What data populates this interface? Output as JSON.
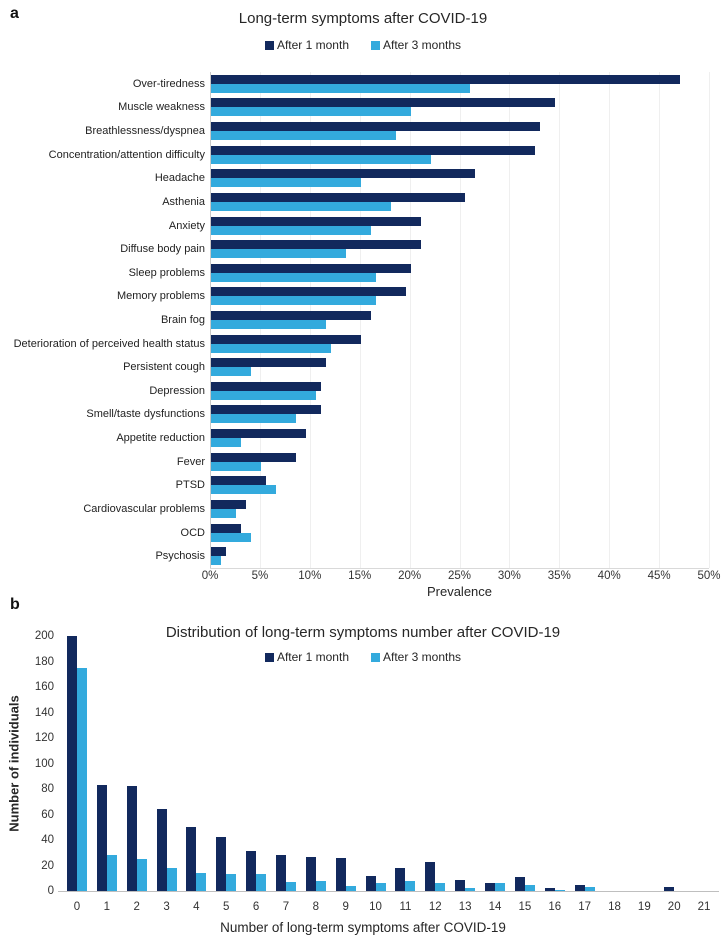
{
  "figure": {
    "panel_a_label": "a",
    "panel_b_label": "b"
  },
  "colors": {
    "after_1_month": "#12295d",
    "after_3_months": "#33aadd",
    "gridline": "#efefef",
    "axis": "#bfbfbf",
    "text": "#262626"
  },
  "chart_data": [
    {
      "panel": "a",
      "type": "bar",
      "orientation": "horizontal",
      "title": "Long-term symptoms after COVID-19",
      "legend_position": "top-center",
      "grid": "vertical gridlines every 5%",
      "xlabel": "Prevalence",
      "xlim": [
        0,
        50
      ],
      "x_tick_labels": [
        "0%",
        "5%",
        "10%",
        "15%",
        "20%",
        "25%",
        "30%",
        "35%",
        "40%",
        "45%",
        "50%"
      ],
      "categories": [
        "Over-tiredness",
        "Muscle weakness",
        "Breathlessness/dyspnea",
        "Concentration/attention difficulty",
        "Headache",
        "Asthenia",
        "Anxiety",
        "Diffuse body pain",
        "Sleep problems",
        "Memory problems",
        "Brain fog",
        "Deterioration of perceived health status",
        "Persistent cough",
        "Depression",
        "Smell/taste dysfunctions",
        "Appetite reduction",
        "Fever",
        "PTSD",
        "Cardiovascular problems",
        "OCD",
        "Psychosis"
      ],
      "series": [
        {
          "name": "After 1 month",
          "color": "#12295d",
          "values": [
            47,
            34.5,
            33,
            32.5,
            26.5,
            25.5,
            21,
            21,
            20,
            19.5,
            16,
            15,
            11.5,
            11,
            11,
            9.5,
            8.5,
            5.5,
            3.5,
            3,
            1.5
          ]
        },
        {
          "name": "After 3 months",
          "color": "#33aadd",
          "values": [
            26,
            20,
            18.5,
            22,
            15,
            18,
            16,
            13.5,
            16.5,
            16.5,
            11.5,
            12,
            4,
            10.5,
            8.5,
            3,
            5,
            6.5,
            2.5,
            4,
            1
          ]
        }
      ],
      "value_unit": "percent"
    },
    {
      "panel": "b",
      "type": "bar",
      "orientation": "vertical",
      "title": "Distribution of long-term symptoms number after COVID-19",
      "legend_position": "top-center",
      "grid": "none",
      "xlabel": "Number of long-term symptoms after COVID-19",
      "ylabel": "Number of individuals",
      "ylim": [
        0,
        200
      ],
      "y_tick_labels": [
        "0",
        "20",
        "40",
        "60",
        "80",
        "100",
        "120",
        "140",
        "160",
        "180",
        "200"
      ],
      "categories": [
        "0",
        "1",
        "2",
        "3",
        "4",
        "5",
        "6",
        "7",
        "8",
        "9",
        "10",
        "11",
        "12",
        "13",
        "14",
        "15",
        "16",
        "17",
        "18",
        "19",
        "20",
        "21"
      ],
      "series": [
        {
          "name": "After 1 month",
          "color": "#12295d",
          "values": [
            200,
            83,
            82,
            64,
            50,
            42,
            31,
            28,
            27,
            26,
            12,
            18,
            23,
            9,
            6,
            11,
            2,
            5,
            0,
            0,
            3,
            0
          ]
        },
        {
          "name": "After 3 months",
          "color": "#33aadd",
          "values": [
            175,
            28,
            25,
            18,
            14,
            13,
            13,
            7,
            8,
            4,
            6,
            8,
            6,
            2,
            6,
            5,
            1,
            3,
            0,
            0,
            0,
            0
          ]
        }
      ],
      "value_unit": "individuals"
    }
  ]
}
